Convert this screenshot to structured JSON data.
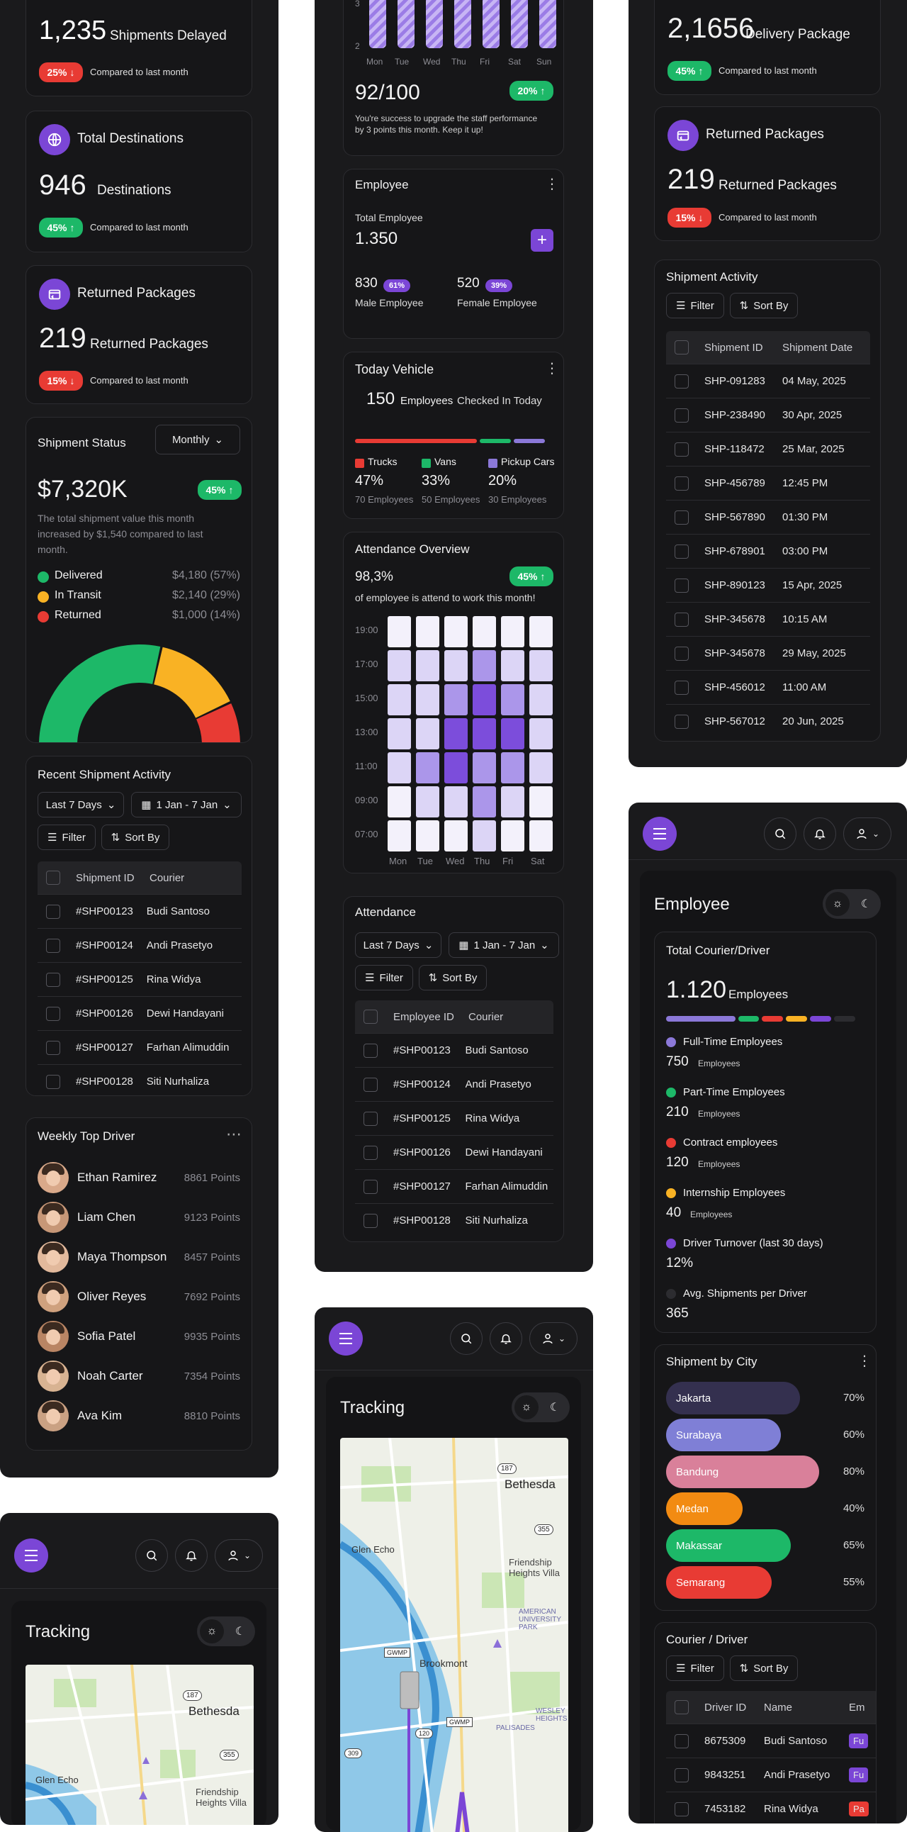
{
  "col1": {
    "delayed": {
      "value": "1,235",
      "label": "Shipments Delayed",
      "pct": "25%",
      "compare": "Compared to last month"
    },
    "dest": {
      "title": "Total Destinations",
      "value": "946",
      "label": "Destinations",
      "pct": "45%",
      "compare": "Compared to last month"
    },
    "returned": {
      "title": "Returned Packages",
      "value": "219",
      "label": "Returned Packages",
      "pct": "15%",
      "compare": "Compared to last month"
    },
    "status": {
      "title": "Shipment Status",
      "dropdown": "Monthly",
      "value": "$7,320K",
      "pct": "45%",
      "desc1": "The total shipment value this month",
      "desc2": "increased by $1,540 compared to last",
      "desc3": "month.",
      "legend": [
        {
          "label": "Delivered",
          "value": "$4,180 (57%)",
          "color": "#1db868"
        },
        {
          "label": "In Transit",
          "value": "$2,140 (29%)",
          "color": "#f9b224"
        },
        {
          "label": "Returned",
          "value": "$1,000 (14%)",
          "color": "#e83b34"
        }
      ]
    },
    "recent": {
      "title": "Recent Shipment Activity",
      "range": "Last 7 Days",
      "date": "1 Jan - 7 Jan",
      "filter": "Filter",
      "sort": "Sort By",
      "col_id": "Shipment ID",
      "col_courier": "Courier",
      "rows": [
        {
          "id": "#SHP00123",
          "courier": "Budi Santoso"
        },
        {
          "id": "#SHP00124",
          "courier": "Andi Prasetyo"
        },
        {
          "id": "#SHP00125",
          "courier": "Rina Widya"
        },
        {
          "id": "#SHP00126",
          "courier": "Dewi Handayani"
        },
        {
          "id": "#SHP00127",
          "courier": "Farhan Alimuddin"
        },
        {
          "id": "#SHP00128",
          "courier": "Siti Nurhaliza"
        }
      ]
    },
    "drivers": {
      "title": "Weekly Top Driver",
      "items": [
        {
          "name": "Ethan Ramirez",
          "points": "8861 Points"
        },
        {
          "name": "Liam Chen",
          "points": "9123 Points"
        },
        {
          "name": "Maya Thompson",
          "points": "8457 Points"
        },
        {
          "name": "Oliver Reyes",
          "points": "7692 Points"
        },
        {
          "name": "Sofia Patel",
          "points": "9935 Points"
        },
        {
          "name": "Noah Carter",
          "points": "7354 Points"
        },
        {
          "name": "Ava Kim",
          "points": "8810 Points"
        }
      ]
    },
    "tracking": {
      "title": "Tracking",
      "map_label1": "Bethesda",
      "map_label2": "Glen Echo",
      "map_label3": "Friendship Heights Villa",
      "road1": "187",
      "road2": "355"
    }
  },
  "col2": {
    "perf": {
      "y3": "3",
      "y2": "2",
      "days": [
        "Mon",
        "Tue",
        "Wed",
        "Thu",
        "Fri",
        "Sat",
        "Sun"
      ],
      "score": "92/100",
      "pct": "20%",
      "desc1": "You're success to upgrade the staff performance",
      "desc2": "by 3 points this month. Keep it up!"
    },
    "employee": {
      "title": "Employee",
      "total_label": "Total Employee",
      "total": "1.350",
      "male": "830",
      "male_pct": "61%",
      "male_label": "Male Employee",
      "female": "520",
      "female_pct": "39%",
      "female_label": "Female Employee"
    },
    "vehicle": {
      "title": "Today Vehicle",
      "count": "150",
      "count_label": "Employees",
      "sub": "Checked In Today",
      "items": [
        {
          "label": "Trucks",
          "pct": "47%",
          "emp": "70 Employees",
          "color": "#e83b34"
        },
        {
          "label": "Vans",
          "pct": "33%",
          "emp": "50 Employees",
          "color": "#1db868"
        },
        {
          "label": "Pickup Cars",
          "pct": "20%",
          "emp": "30 Employees",
          "color": "#8b78d8"
        }
      ]
    },
    "att_overview": {
      "title": "Attendance Overview",
      "value": "98,3%",
      "pct": "45%",
      "desc": "of employee is attend to work this month!",
      "hours": [
        "19:00",
        "17:00",
        "15:00",
        "13:00",
        "11:00",
        "09:00",
        "07:00"
      ],
      "days": [
        "Mon",
        "Tue",
        "Wed",
        "Thu",
        "Fri",
        "Sat"
      ],
      "levels": [
        [
          0,
          0,
          0,
          0,
          0,
          0
        ],
        [
          1,
          1,
          1,
          2,
          1,
          1
        ],
        [
          1,
          1,
          2,
          3,
          2,
          1
        ],
        [
          1,
          1,
          3,
          3,
          3,
          1
        ],
        [
          1,
          2,
          3,
          2,
          2,
          1
        ],
        [
          0,
          1,
          1,
          2,
          1,
          0
        ],
        [
          0,
          0,
          0,
          1,
          0,
          0
        ]
      ]
    },
    "attendance": {
      "title": "Attendance",
      "range": "Last 7 Days",
      "date": "1 Jan - 7 Jan",
      "filter": "Filter",
      "sort": "Sort By",
      "col_id": "Employee ID",
      "col_courier": "Courier",
      "rows": [
        {
          "id": "#SHP00123",
          "courier": "Budi Santoso"
        },
        {
          "id": "#SHP00124",
          "courier": "Andi Prasetyo"
        },
        {
          "id": "#SHP00125",
          "courier": "Rina Widya"
        },
        {
          "id": "#SHP00126",
          "courier": "Dewi Handayani"
        },
        {
          "id": "#SHP00127",
          "courier": "Farhan Alimuddin"
        },
        {
          "id": "#SHP00128",
          "courier": "Siti Nurhaliza"
        }
      ]
    },
    "tracking": {
      "title": "Tracking",
      "map_label1": "Bethesda",
      "map_label2": "Glen Echo",
      "map_label3": "Friendship Heights Villa",
      "map_label4": "AMERICAN UNIVERSITY PARK",
      "map_label5": "Brookmont",
      "map_label6": "WESLEY HEIGHTS",
      "map_label7": "PALISADES",
      "road1": "187",
      "road2": "355",
      "road3": "GWMP",
      "road4": "GWMP",
      "road5": "120",
      "road6": "309"
    }
  },
  "col3": {
    "delivery": {
      "value": "2,1656",
      "label": "Delivery Package",
      "pct": "45%",
      "compare": "Compared to last month"
    },
    "returned": {
      "title": "Returned Packages",
      "value": "219",
      "label": "Returned Packages",
      "pct": "15%",
      "compare": "Compared to last month"
    },
    "activity": {
      "title": "Shipment Activity",
      "filter": "Filter",
      "sort": "Sort By",
      "col_id": "Shipment ID",
      "col_date": "Shipment Date",
      "rows": [
        {
          "id": "SHP-091283",
          "date": "04 May, 2025"
        },
        {
          "id": "SHP-238490",
          "date": "30 Apr, 2025"
        },
        {
          "id": "SHP-118472",
          "date": "25 Mar, 2025"
        },
        {
          "id": "SHP-456789",
          "date": "12:45 PM"
        },
        {
          "id": "SHP-567890",
          "date": "01:30 PM"
        },
        {
          "id": "SHP-678901",
          "date": "03:00 PM"
        },
        {
          "id": "SHP-890123",
          "date": "15 Apr, 2025"
        },
        {
          "id": "SHP-345678",
          "date": "10:15 AM"
        },
        {
          "id": "SHP-345678",
          "date": "29 May, 2025"
        },
        {
          "id": "SHP-456012",
          "date": "11:00 AM"
        },
        {
          "id": "SHP-567012",
          "date": "20 Jun, 2025"
        }
      ]
    },
    "employee_page": {
      "title": "Employee"
    },
    "courier_total": {
      "title": "Total Courier/Driver",
      "value": "1.120",
      "label": "Employees",
      "items": [
        {
          "label": "Full-Time Employees",
          "value": "750",
          "unit": "Employees",
          "color": "#8b78d8"
        },
        {
          "label": "Part-Time Employees",
          "value": "210",
          "unit": "Employees",
          "color": "#1db868"
        },
        {
          "label": "Contract employees",
          "value": "120",
          "unit": "Employees",
          "color": "#e83b34"
        },
        {
          "label": "Internship Employees",
          "value": "40",
          "unit": "Employees",
          "color": "#f9b224"
        },
        {
          "label": "Driver Turnover (last 30 days)",
          "value": "12%",
          "unit": "",
          "color": "#7b46d6"
        },
        {
          "label": "Avg. Shipments per Driver",
          "value": "365",
          "unit": "",
          "color": "#2c2c30"
        }
      ]
    },
    "city": {
      "title": "Shipment by City",
      "items": [
        {
          "label": "Jakarta",
          "pct": "70%",
          "fill": 0.7,
          "color": "#34304f"
        },
        {
          "label": "Surabaya",
          "pct": "60%",
          "fill": 0.6,
          "color": "#7f7fd6"
        },
        {
          "label": "Bandung",
          "pct": "80%",
          "fill": 0.8,
          "color": "#d9809a"
        },
        {
          "label": "Medan",
          "pct": "40%",
          "fill": 0.4,
          "color": "#f28b12"
        },
        {
          "label": "Makassar",
          "pct": "65%",
          "fill": 0.65,
          "color": "#1db868"
        },
        {
          "label": "Semarang",
          "pct": "55%",
          "fill": 0.55,
          "color": "#e83b34"
        }
      ]
    },
    "courier": {
      "title": "Courier / Driver",
      "filter": "Filter",
      "sort": "Sort By",
      "col_id": "Driver ID",
      "col_name": "Name",
      "col_em": "Em",
      "rows": [
        {
          "id": "8675309",
          "name": "Budi Santoso",
          "tag": "Fu",
          "tag_color": "#7b46d6"
        },
        {
          "id": "9843251",
          "name": "Andi Prasetyo",
          "tag": "Fu",
          "tag_color": "#7b46d6"
        },
        {
          "id": "7453182",
          "name": "Rina Widya",
          "tag": "Pa",
          "tag_color": "#e83b34"
        }
      ]
    }
  }
}
